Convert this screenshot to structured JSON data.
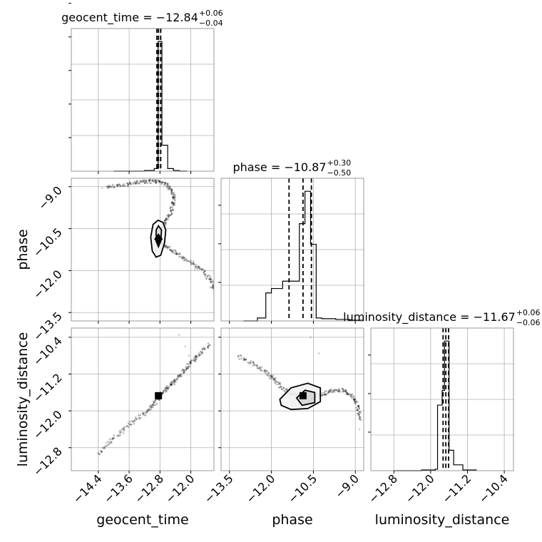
{
  "chart_data": {
    "type": "corner",
    "parameters": [
      "geocent_time",
      "phase",
      "luminosity_distance"
    ],
    "titles": [
      {
        "param": "geocent_time",
        "prefix": "geocent_time = ",
        "value": "−12.84",
        "upper": "+0.06",
        "lower": "−0.04"
      },
      {
        "param": "phase",
        "prefix": "phase = ",
        "value": "−10.87",
        "upper": "+0.30",
        "lower": "−0.50"
      },
      {
        "param": "luminosity_distance",
        "prefix": "luminosity_distance = ",
        "value": "−11.67",
        "upper": "+0.06",
        "lower": "−0.06"
      }
    ],
    "axes": {
      "geocent_time": {
        "range": [
          -15.1,
          -11.4
        ],
        "ticks": [
          -14.4,
          -13.6,
          -12.8,
          -12.0
        ],
        "tick_labels": [
          "−14.4",
          "−13.6",
          "−12.8",
          "−12.0"
        ]
      },
      "phase": {
        "range": [
          -13.8,
          -8.7
        ],
        "ticks": [
          -13.5,
          -12.0,
          -10.5,
          -9.0
        ],
        "tick_labels": [
          "−13.5",
          "−12.0",
          "−10.5",
          "−9.0"
        ]
      },
      "luminosity_distance": {
        "range": [
          -13.3,
          -10.2
        ],
        "ticks": [
          -12.8,
          -12.0,
          -11.2,
          -10.4
        ],
        "tick_labels": [
          "−12.8",
          "−12.0",
          "−11.2",
          "−10.4"
        ]
      }
    },
    "histograms": [
      {
        "param": "geocent_time",
        "bins": [
          -14.0,
          -13.2,
          -12.95,
          -12.85,
          -12.75,
          -12.6,
          -12.45,
          -12.3,
          -12.1
        ],
        "counts": [
          0,
          0.5,
          2,
          100,
          20,
          2,
          0.5,
          0
        ],
        "quantiles": [
          -12.88,
          -12.84,
          -12.78
        ]
      },
      {
        "param": "phase",
        "bins": [
          -13.0,
          -12.5,
          -12.2,
          -12.0,
          -11.8,
          -11.6,
          -11.4,
          -11.2,
          -11.0,
          -10.8,
          -10.6,
          -10.4,
          -10.2,
          -9.7,
          -9.2,
          -8.7
        ],
        "counts": [
          0,
          2,
          19,
          22,
          22,
          27,
          27,
          27,
          66,
          88,
          52,
          2,
          1.5,
          1,
          0.5
        ],
        "quantiles": [
          -11.37,
          -10.87,
          -10.57
        ]
      },
      {
        "param": "luminosity_distance",
        "bins": [
          -12.8,
          -12.2,
          -11.9,
          -11.85,
          -11.8,
          -11.75,
          -11.7,
          -11.65,
          -11.6,
          -11.5,
          -11.3,
          -11.0
        ],
        "counts": [
          0,
          0.5,
          1,
          45,
          45,
          55,
          89,
          89,
          14,
          4,
          0.5
        ],
        "quantiles": [
          -11.73,
          -11.67,
          -11.61
        ]
      }
    ],
    "scatter": [
      {
        "x": "geocent_time",
        "y": "phase",
        "trajectory": [
          {
            "x": -14.2,
            "y": -9.0
          },
          {
            "x": -13.8,
            "y": -8.95
          },
          {
            "x": -13.4,
            "y": -8.86
          },
          {
            "x": -13.1,
            "y": -8.8
          },
          {
            "x": -12.85,
            "y": -8.82
          },
          {
            "x": -12.6,
            "y": -8.95
          },
          {
            "x": -12.45,
            "y": -9.25
          },
          {
            "x": -12.45,
            "y": -9.6
          },
          {
            "x": -12.55,
            "y": -10.0
          },
          {
            "x": -12.7,
            "y": -10.35
          },
          {
            "x": -12.8,
            "y": -10.7
          },
          {
            "x": -12.8,
            "y": -10.95
          },
          {
            "x": -12.65,
            "y": -11.15
          },
          {
            "x": -12.35,
            "y": -11.4
          },
          {
            "x": -12.0,
            "y": -11.7
          },
          {
            "x": -11.7,
            "y": -12.0
          },
          {
            "x": -11.45,
            "y": -12.4
          },
          {
            "x": -11.35,
            "y": -12.8
          }
        ],
        "outliers": [
          {
            "x": -14.3,
            "y": -9.05
          },
          {
            "x": -13.9,
            "y": -8.95
          },
          {
            "x": -13.5,
            "y": -8.9
          },
          {
            "x": -13.2,
            "y": -8.85
          },
          {
            "x": -12.2,
            "y": -11.5
          },
          {
            "x": -11.9,
            "y": -11.95
          },
          {
            "x": -11.6,
            "y": -12.3
          },
          {
            "x": -11.5,
            "y": -12.6
          },
          {
            "x": -12.4,
            "y": -11.3
          }
        ],
        "contours": [
          [
            {
              "x": -12.98,
              "y": -10.35
            },
            {
              "x": -12.85,
              "y": -10.2
            },
            {
              "x": -12.72,
              "y": -10.28
            },
            {
              "x": -12.65,
              "y": -10.55
            },
            {
              "x": -12.68,
              "y": -11.0
            },
            {
              "x": -12.78,
              "y": -11.45
            },
            {
              "x": -12.9,
              "y": -11.52
            },
            {
              "x": -13.0,
              "y": -11.3
            },
            {
              "x": -13.04,
              "y": -10.8
            }
          ],
          [
            {
              "x": -12.9,
              "y": -10.55
            },
            {
              "x": -12.84,
              "y": -10.4
            },
            {
              "x": -12.76,
              "y": -10.55
            },
            {
              "x": -12.78,
              "y": -10.95
            },
            {
              "x": -12.84,
              "y": -11.15
            },
            {
              "x": -12.9,
              "y": -10.95
            }
          ]
        ],
        "marker": {
          "x": -12.84,
          "y": -10.87,
          "shape": "diamond"
        }
      },
      {
        "x": "geocent_time",
        "y": "luminosity_distance",
        "trajectory": [
          {
            "x": -14.4,
            "y": -12.95
          },
          {
            "x": -14.0,
            "y": -12.6
          },
          {
            "x": -13.6,
            "y": -12.3
          },
          {
            "x": -13.2,
            "y": -12.05
          },
          {
            "x": -12.95,
            "y": -11.85
          },
          {
            "x": -12.8,
            "y": -11.65
          },
          {
            "x": -12.6,
            "y": -11.5
          },
          {
            "x": -12.4,
            "y": -11.35
          },
          {
            "x": -12.2,
            "y": -11.15
          },
          {
            "x": -12.0,
            "y": -10.95
          },
          {
            "x": -11.8,
            "y": -10.78
          },
          {
            "x": -11.5,
            "y": -10.55
          }
        ],
        "outliers": [
          {
            "x": -12.3,
            "y": -10.35
          },
          {
            "x": -12.15,
            "y": -10.6
          },
          {
            "x": -12.05,
            "y": -10.8
          },
          {
            "x": -14.2,
            "y": -12.7
          },
          {
            "x": -13.8,
            "y": -12.45
          }
        ],
        "contours": [],
        "marker": {
          "x": -12.84,
          "y": -11.67,
          "shape": "square"
        }
      },
      {
        "x": "phase",
        "y": "luminosity_distance",
        "trajectory": [
          {
            "x": -13.2,
            "y": -10.8
          },
          {
            "x": -12.6,
            "y": -11.0
          },
          {
            "x": -12.1,
            "y": -11.2
          },
          {
            "x": -11.8,
            "y": -11.4
          },
          {
            "x": -11.4,
            "y": -11.6
          },
          {
            "x": -11.0,
            "y": -11.65
          },
          {
            "x": -10.6,
            "y": -11.7
          },
          {
            "x": -10.2,
            "y": -11.65
          },
          {
            "x": -9.8,
            "y": -11.55
          },
          {
            "x": -9.4,
            "y": -11.55
          },
          {
            "x": -9.1,
            "y": -11.7
          },
          {
            "x": -8.9,
            "y": -11.9
          },
          {
            "x": -8.8,
            "y": -12.2
          }
        ],
        "outliers": [
          {
            "x": -13.0,
            "y": -10.9
          },
          {
            "x": -12.4,
            "y": -11.1
          },
          {
            "x": -10.6,
            "y": -10.4
          },
          {
            "x": -10.3,
            "y": -10.75
          },
          {
            "x": -8.85,
            "y": -12.4
          },
          {
            "x": -11.9,
            "y": -11.3
          }
        ],
        "contours": [
          [
            {
              "x": -11.7,
              "y": -11.75
            },
            {
              "x": -11.3,
              "y": -11.5
            },
            {
              "x": -10.7,
              "y": -11.4
            },
            {
              "x": -10.25,
              "y": -11.5
            },
            {
              "x": -10.25,
              "y": -11.8
            },
            {
              "x": -10.7,
              "y": -11.95
            },
            {
              "x": -11.3,
              "y": -11.97
            },
            {
              "x": -11.65,
              "y": -11.88
            }
          ],
          [
            {
              "x": -11.1,
              "y": -11.72
            },
            {
              "x": -10.8,
              "y": -11.55
            },
            {
              "x": -10.45,
              "y": -11.6
            },
            {
              "x": -10.45,
              "y": -11.82
            },
            {
              "x": -10.9,
              "y": -11.88
            }
          ]
        ],
        "marker": {
          "x": -10.87,
          "y": -11.67,
          "shape": "square"
        }
      }
    ],
    "grid": true
  }
}
